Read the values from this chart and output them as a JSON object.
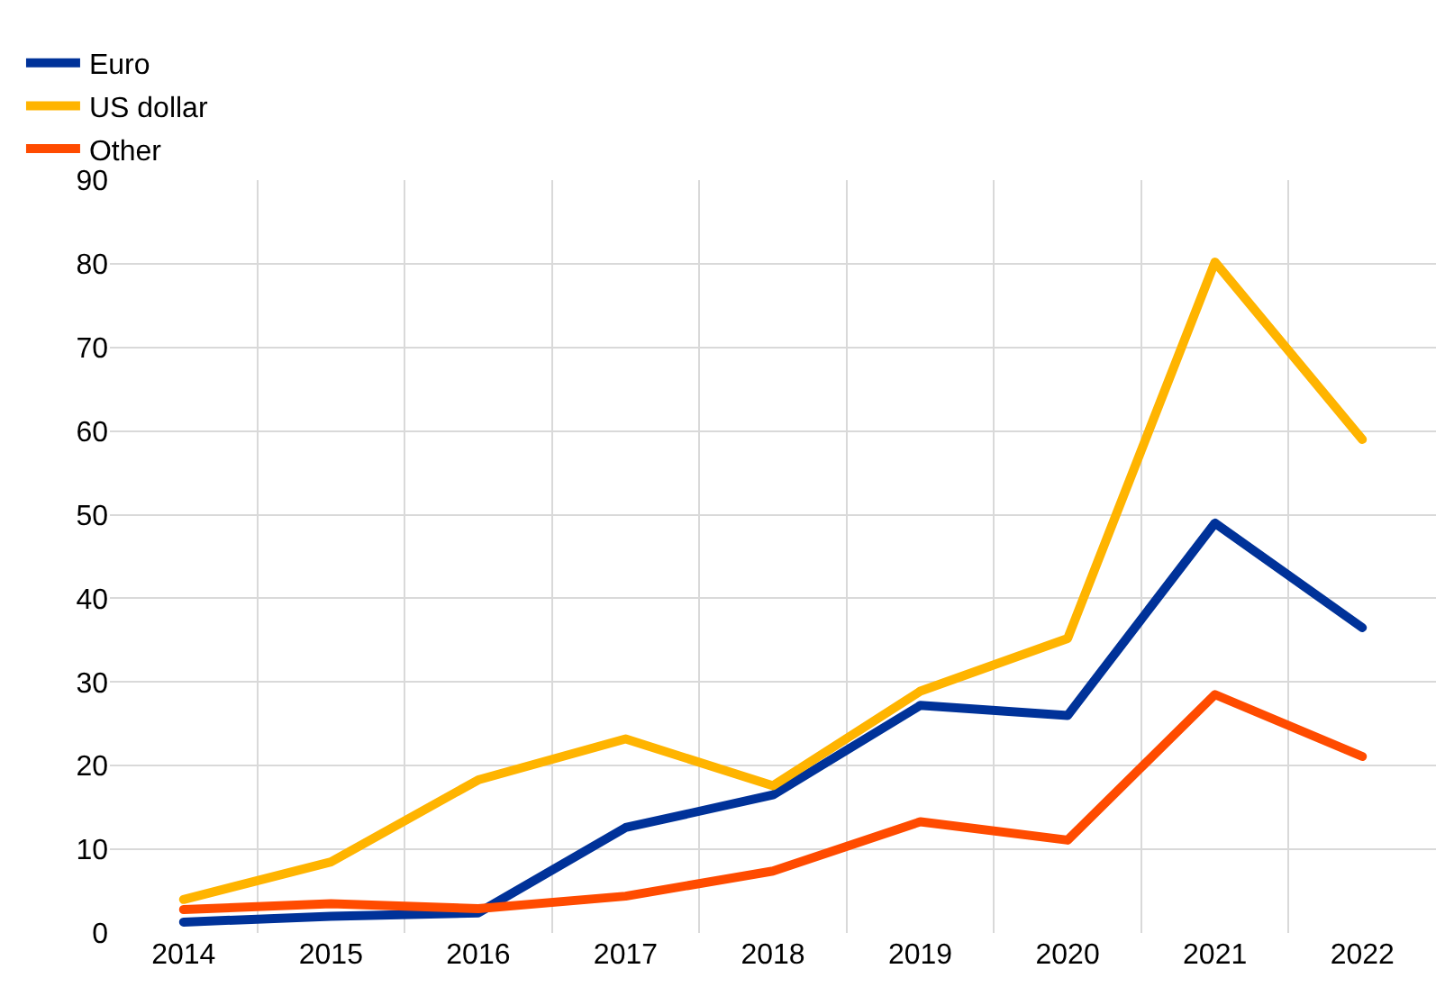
{
  "chart_data": {
    "type": "line",
    "x": [
      2014,
      2015,
      2016,
      2017,
      2018,
      2019,
      2020,
      2021,
      2022
    ],
    "series": [
      {
        "name": "Euro",
        "color": "#003299",
        "values": [
          1.3,
          2,
          2.4,
          12.6,
          16.5,
          27.2,
          26,
          49,
          36.5
        ]
      },
      {
        "name": "US dollar",
        "color": "#ffb400",
        "values": [
          4,
          8.5,
          18.3,
          23.2,
          17.6,
          28.9,
          35.2,
          80.2,
          59
        ]
      },
      {
        "name": "Other",
        "color": "#ff4b00",
        "values": [
          2.8,
          3.5,
          2.9,
          4.4,
          7.4,
          13.3,
          11.1,
          28.5,
          21.1
        ]
      }
    ],
    "xlim": [
      2013.5,
      2022.5
    ],
    "xticks": [
      2014,
      2015,
      2016,
      2017,
      2018,
      2019,
      2020,
      2021,
      2022
    ],
    "ylim": [
      0,
      90
    ],
    "yticks": [
      0,
      10,
      20,
      30,
      40,
      50,
      60,
      70,
      80,
      90
    ],
    "grid": true,
    "legend": "top left",
    "marker": "none",
    "line_style": "solid"
  }
}
